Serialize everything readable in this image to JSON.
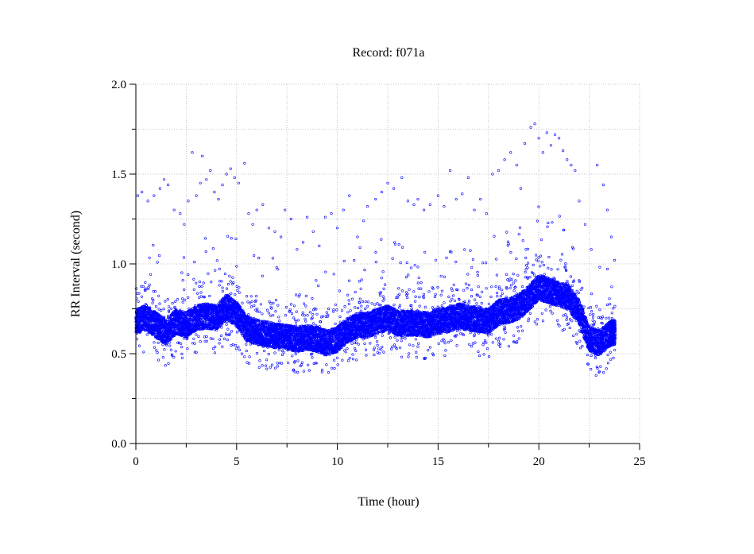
{
  "chart_data": {
    "type": "scatter",
    "title": "Record:  f071a",
    "xlabel": "Time (hour)",
    "ylabel": "RR Interval (second)",
    "xlim": [
      0,
      25
    ],
    "ylim": [
      0,
      2.0
    ],
    "x_ticks": [
      0,
      5,
      10,
      15,
      20,
      25
    ],
    "x_tick_labels": [
      "0",
      "5",
      "10",
      "15",
      "20",
      "25"
    ],
    "y_ticks": [
      0,
      0.5,
      1.0,
      1.5,
      2.0
    ],
    "y_tick_labels": [
      "0.0",
      "0.5",
      "1.0",
      "1.5",
      "2.0"
    ],
    "grid": true,
    "marker_color": "#0000ff",
    "series": [
      {
        "baseline": [
          [
            0.0,
            0.68
          ],
          [
            0.5,
            0.7
          ],
          [
            1.0,
            0.66
          ],
          [
            1.5,
            0.62
          ],
          [
            2.0,
            0.68
          ],
          [
            2.5,
            0.66
          ],
          [
            3.0,
            0.7
          ],
          [
            3.5,
            0.71
          ],
          [
            4.0,
            0.7
          ],
          [
            4.5,
            0.76
          ],
          [
            5.0,
            0.72
          ],
          [
            5.5,
            0.64
          ],
          [
            6.0,
            0.62
          ],
          [
            6.5,
            0.61
          ],
          [
            7.0,
            0.6
          ],
          [
            7.5,
            0.59
          ],
          [
            8.0,
            0.58
          ],
          [
            8.5,
            0.59
          ],
          [
            9.0,
            0.58
          ],
          [
            9.5,
            0.56
          ],
          [
            10.0,
            0.58
          ],
          [
            10.5,
            0.63
          ],
          [
            11.0,
            0.66
          ],
          [
            11.5,
            0.66
          ],
          [
            12.0,
            0.68
          ],
          [
            12.5,
            0.7
          ],
          [
            13.0,
            0.67
          ],
          [
            13.5,
            0.67
          ],
          [
            14.0,
            0.67
          ],
          [
            14.5,
            0.66
          ],
          [
            15.0,
            0.68
          ],
          [
            15.5,
            0.69
          ],
          [
            16.0,
            0.71
          ],
          [
            16.5,
            0.7
          ],
          [
            17.0,
            0.69
          ],
          [
            17.5,
            0.68
          ],
          [
            18.0,
            0.73
          ],
          [
            18.5,
            0.74
          ],
          [
            19.0,
            0.76
          ],
          [
            19.5,
            0.81
          ],
          [
            20.0,
            0.87
          ],
          [
            20.5,
            0.85
          ],
          [
            21.0,
            0.83
          ],
          [
            21.5,
            0.81
          ],
          [
            22.0,
            0.73
          ],
          [
            22.5,
            0.58
          ],
          [
            23.0,
            0.56
          ],
          [
            23.5,
            0.61
          ],
          [
            23.8,
            0.62
          ]
        ],
        "outliers": [
          [
            0.1,
            1.38
          ],
          [
            0.3,
            1.4
          ],
          [
            0.6,
            1.35
          ],
          [
            0.9,
            1.38
          ],
          [
            1.2,
            1.42
          ],
          [
            1.4,
            1.47
          ],
          [
            1.6,
            1.44
          ],
          [
            1.9,
            1.3
          ],
          [
            2.2,
            1.28
          ],
          [
            2.4,
            1.22
          ],
          [
            2.6,
            1.35
          ],
          [
            2.8,
            1.62
          ],
          [
            3.0,
            1.38
          ],
          [
            3.2,
            1.45
          ],
          [
            3.3,
            1.6
          ],
          [
            3.5,
            1.47
          ],
          [
            3.7,
            1.52
          ],
          [
            3.9,
            1.4
          ],
          [
            4.1,
            1.36
          ],
          [
            4.3,
            1.44
          ],
          [
            4.5,
            1.5
          ],
          [
            4.7,
            1.53
          ],
          [
            4.9,
            1.48
          ],
          [
            5.1,
            1.45
          ],
          [
            5.4,
            1.56
          ],
          [
            5.6,
            1.28
          ],
          [
            5.8,
            1.22
          ],
          [
            6.0,
            1.3
          ],
          [
            6.3,
            1.33
          ],
          [
            6.6,
            1.2
          ],
          [
            6.9,
            1.18
          ],
          [
            7.2,
            1.15
          ],
          [
            7.4,
            1.3
          ],
          [
            7.7,
            1.25
          ],
          [
            8.0,
            1.08
          ],
          [
            8.3,
            1.12
          ],
          [
            8.5,
            1.26
          ],
          [
            8.8,
            1.18
          ],
          [
            9.1,
            1.1
          ],
          [
            9.4,
            1.26
          ],
          [
            9.7,
            1.28
          ],
          [
            10.0,
            1.2
          ],
          [
            10.3,
            1.3
          ],
          [
            10.6,
            1.38
          ],
          [
            11.0,
            1.15
          ],
          [
            11.3,
            1.24
          ],
          [
            11.5,
            1.32
          ],
          [
            11.9,
            1.36
          ],
          [
            12.2,
            1.4
          ],
          [
            12.5,
            1.45
          ],
          [
            12.8,
            1.42
          ],
          [
            13.2,
            1.48
          ],
          [
            13.5,
            1.35
          ],
          [
            13.8,
            1.33
          ],
          [
            14.0,
            1.36
          ],
          [
            14.3,
            1.3
          ],
          [
            14.6,
            1.33
          ],
          [
            15.0,
            1.38
          ],
          [
            15.3,
            1.32
          ],
          [
            15.6,
            1.52
          ],
          [
            15.9,
            1.36
          ],
          [
            16.2,
            1.39
          ],
          [
            16.5,
            1.48
          ],
          [
            16.8,
            1.3
          ],
          [
            17.1,
            1.36
          ],
          [
            17.4,
            1.28
          ],
          [
            17.7,
            1.5
          ],
          [
            18.0,
            1.52
          ],
          [
            18.3,
            1.58
          ],
          [
            18.6,
            1.62
          ],
          [
            18.9,
            1.55
          ],
          [
            19.1,
            1.42
          ],
          [
            19.3,
            1.67
          ],
          [
            19.6,
            1.76
          ],
          [
            19.8,
            1.78
          ],
          [
            20.0,
            1.7
          ],
          [
            20.2,
            1.62
          ],
          [
            20.4,
            1.73
          ],
          [
            20.6,
            1.66
          ],
          [
            20.8,
            1.72
          ],
          [
            21.0,
            1.7
          ],
          [
            21.2,
            1.63
          ],
          [
            21.4,
            1.58
          ],
          [
            21.6,
            1.55
          ],
          [
            21.8,
            1.52
          ],
          [
            22.0,
            1.35
          ],
          [
            22.3,
            1.22
          ],
          [
            22.6,
            1.08
          ],
          [
            22.9,
            1.55
          ],
          [
            23.2,
            1.44
          ],
          [
            23.4,
            1.3
          ],
          [
            23.6,
            1.15
          ]
        ]
      }
    ]
  }
}
